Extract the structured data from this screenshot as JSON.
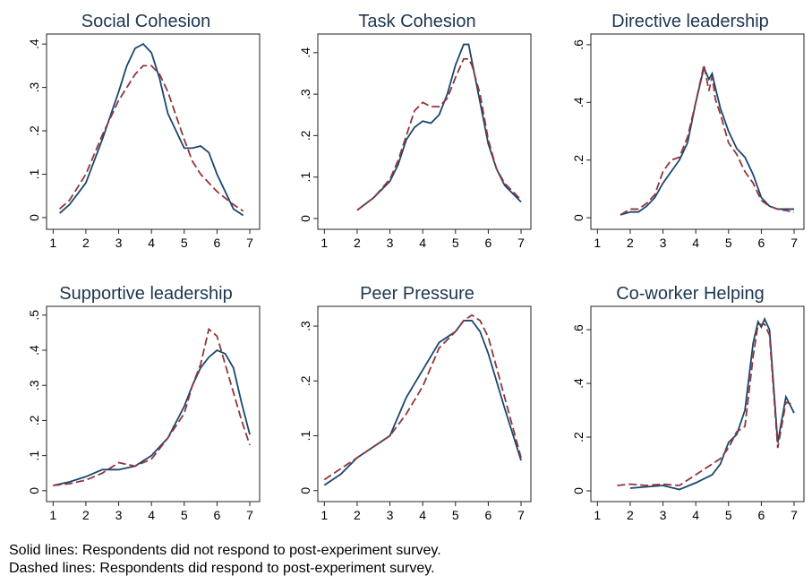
{
  "chart_data": [
    {
      "type": "line",
      "title": "Social Cohesion",
      "x": [
        1.2,
        1.5,
        2,
        2.5,
        3,
        3.25,
        3.5,
        3.75,
        4,
        4.25,
        4.5,
        5,
        5.25,
        5.5,
        5.75,
        6,
        6.5,
        6.8
      ],
      "series": [
        {
          "color": "#1a476f",
          "dash": false,
          "values": [
            0.01,
            0.03,
            0.08,
            0.18,
            0.29,
            0.35,
            0.39,
            0.4,
            0.38,
            0.32,
            0.24,
            0.16,
            0.16,
            0.165,
            0.15,
            0.1,
            0.02,
            0.005
          ]
        },
        {
          "color": "#90353b",
          "dash": true,
          "values": [
            0.02,
            0.04,
            0.1,
            0.19,
            0.27,
            0.3,
            0.33,
            0.35,
            0.35,
            0.33,
            0.29,
            0.18,
            0.13,
            0.1,
            0.08,
            0.06,
            0.03,
            0.015
          ]
        }
      ],
      "xlim": [
        0.8,
        7.3
      ],
      "xticks": [
        1,
        2,
        3,
        4,
        5,
        6,
        7
      ],
      "ylim": [
        -0.027,
        0.423
      ],
      "yticks": [
        0,
        {
          "value": 0.1,
          "label": ".1"
        },
        {
          "value": 0.2,
          "label": ".2"
        },
        {
          "value": 0.3,
          "label": ".3"
        },
        {
          "value": 0.4,
          "label": ".4"
        }
      ]
    },
    {
      "type": "line",
      "title": "Task Cohesion",
      "x": [
        2,
        2.5,
        3,
        3.25,
        3.5,
        3.75,
        4,
        4.25,
        4.5,
        4.75,
        5,
        5.25,
        5.4,
        5.5,
        5.75,
        6,
        6.25,
        6.5,
        7
      ],
      "series": [
        {
          "color": "#1a476f",
          "dash": false,
          "values": [
            0.02,
            0.05,
            0.09,
            0.13,
            0.19,
            0.22,
            0.235,
            0.23,
            0.25,
            0.3,
            0.37,
            0.42,
            0.42,
            0.38,
            0.28,
            0.18,
            0.12,
            0.08,
            0.04
          ]
        },
        {
          "color": "#90353b",
          "dash": true,
          "values": [
            0.02,
            0.05,
            0.095,
            0.14,
            0.2,
            0.26,
            0.28,
            0.27,
            0.27,
            0.29,
            0.34,
            0.385,
            0.385,
            0.37,
            0.3,
            0.19,
            0.12,
            0.085,
            0.045
          ]
        }
      ],
      "xlim": [
        0.8,
        7.3
      ],
      "xticks": [
        1,
        2,
        3,
        4,
        5,
        6,
        7
      ],
      "ylim": [
        -0.026,
        0.445
      ],
      "yticks": [
        0,
        {
          "value": 0.1,
          "label": ".1"
        },
        {
          "value": 0.2,
          "label": ".2"
        },
        {
          "value": 0.3,
          "label": ".3"
        },
        {
          "value": 0.4,
          "label": ".4"
        }
      ]
    },
    {
      "type": "line",
      "title": "Directive leadership",
      "x": [
        1.7,
        2,
        2.25,
        2.5,
        2.75,
        3,
        3.25,
        3.5,
        3.75,
        4,
        4.25,
        4.4,
        4.5,
        4.6,
        4.75,
        5,
        5.25,
        5.5,
        5.75,
        6,
        6.25,
        6.5,
        7
      ],
      "series": [
        {
          "color": "#1a476f",
          "dash": false,
          "values": [
            0.01,
            0.02,
            0.02,
            0.04,
            0.07,
            0.12,
            0.16,
            0.2,
            0.26,
            0.4,
            0.52,
            0.48,
            0.5,
            0.45,
            0.38,
            0.3,
            0.24,
            0.21,
            0.15,
            0.07,
            0.04,
            0.03,
            0.03
          ]
        },
        {
          "color": "#90353b",
          "dash": true,
          "values": [
            0.01,
            0.03,
            0.03,
            0.05,
            0.08,
            0.16,
            0.2,
            0.21,
            0.28,
            0.4,
            0.53,
            0.44,
            0.49,
            0.41,
            0.36,
            0.26,
            0.22,
            0.16,
            0.12,
            0.06,
            0.04,
            0.03,
            0.02
          ]
        }
      ],
      "xlim": [
        0.8,
        7.3
      ],
      "xticks": [
        1,
        2,
        3,
        4,
        5,
        6,
        7
      ],
      "ylim": [
        -0.04,
        0.637
      ],
      "yticks": [
        0,
        {
          "value": 0.2,
          "label": ".2"
        },
        {
          "value": 0.4,
          "label": ".4"
        },
        {
          "value": 0.6,
          "label": ".6"
        }
      ]
    },
    {
      "type": "line",
      "title": "Supportive leadership",
      "x": [
        1,
        1.5,
        2,
        2.5,
        3,
        3.5,
        4,
        4.5,
        5,
        5.25,
        5.5,
        5.75,
        6,
        6.25,
        6.5,
        6.75,
        7
      ],
      "series": [
        {
          "color": "#1a476f",
          "dash": false,
          "values": [
            0.015,
            0.025,
            0.04,
            0.06,
            0.06,
            0.07,
            0.1,
            0.15,
            0.24,
            0.3,
            0.35,
            0.38,
            0.4,
            0.39,
            0.35,
            0.25,
            0.16
          ]
        },
        {
          "color": "#90353b",
          "dash": true,
          "values": [
            0.015,
            0.02,
            0.03,
            0.05,
            0.08,
            0.07,
            0.09,
            0.15,
            0.22,
            0.3,
            0.36,
            0.46,
            0.44,
            0.36,
            0.28,
            0.2,
            0.13
          ]
        }
      ],
      "xlim": [
        0.8,
        7.3
      ],
      "xticks": [
        1,
        2,
        3,
        4,
        5,
        6,
        7
      ],
      "ylim": [
        -0.031,
        0.525
      ],
      "yticks": [
        0,
        {
          "value": 0.1,
          "label": ".1"
        },
        {
          "value": 0.2,
          "label": ".2"
        },
        {
          "value": 0.3,
          "label": ".3"
        },
        {
          "value": 0.4,
          "label": ".4"
        },
        {
          "value": 0.5,
          "label": ".5"
        }
      ]
    },
    {
      "type": "line",
      "title": "Peer Pressure",
      "x": [
        1,
        1.5,
        2,
        2.5,
        3,
        3.5,
        4,
        4.5,
        5,
        5.25,
        5.5,
        5.75,
        6,
        6.5,
        7
      ],
      "series": [
        {
          "color": "#1a476f",
          "dash": false,
          "values": [
            0.01,
            0.03,
            0.06,
            0.08,
            0.1,
            0.17,
            0.22,
            0.27,
            0.29,
            0.31,
            0.31,
            0.29,
            0.25,
            0.15,
            0.055
          ]
        },
        {
          "color": "#90353b",
          "dash": true,
          "values": [
            0.02,
            0.04,
            0.06,
            0.08,
            0.1,
            0.14,
            0.19,
            0.26,
            0.29,
            0.31,
            0.32,
            0.31,
            0.28,
            0.17,
            0.06
          ]
        }
      ],
      "xlim": [
        0.8,
        7.3
      ],
      "xticks": [
        1,
        2,
        3,
        4,
        5,
        6,
        7
      ],
      "ylim": [
        -0.02,
        0.336
      ],
      "yticks": [
        0,
        {
          "value": 0.1,
          "label": ".1"
        },
        {
          "value": 0.2,
          "label": ".2"
        },
        {
          "value": 0.3,
          "label": ".3"
        }
      ]
    },
    {
      "type": "line",
      "title": "Co-worker Helping",
      "x": [
        1.6,
        2,
        2.5,
        3,
        3.5,
        4,
        4.5,
        4.75,
        5,
        5.25,
        5.5,
        5.75,
        5.9,
        6,
        6.1,
        6.25,
        6.5,
        6.75,
        7
      ],
      "series": [
        {
          "color": "#1a476f",
          "dash": false,
          "values": [
            null,
            0.01,
            0.015,
            0.02,
            0.005,
            0.03,
            0.06,
            0.1,
            0.18,
            0.21,
            0.3,
            0.55,
            0.63,
            0.61,
            0.64,
            0.6,
            0.18,
            0.35,
            0.29
          ]
        },
        {
          "color": "#90353b",
          "dash": true,
          "values": [
            0.02,
            0.025,
            0.02,
            0.025,
            0.02,
            0.06,
            0.1,
            0.12,
            0.16,
            0.22,
            0.24,
            0.5,
            0.62,
            0.62,
            0.62,
            0.58,
            0.16,
            0.33,
            0.32
          ]
        }
      ],
      "xlim": [
        0.8,
        7.3
      ],
      "xticks": [
        1,
        2,
        3,
        4,
        5,
        6,
        7
      ],
      "ylim": [
        -0.04,
        0.687
      ],
      "yticks": [
        0,
        {
          "value": 0.2,
          "label": ".2"
        },
        {
          "value": 0.4,
          "label": ".4"
        },
        {
          "value": 0.6,
          "label": ".6"
        }
      ]
    }
  ],
  "notes": [
    "Solid lines: Respondents did not respond to post-experiment survey.",
    "Dashed lines: Respondents did respond to post-experiment survey."
  ]
}
